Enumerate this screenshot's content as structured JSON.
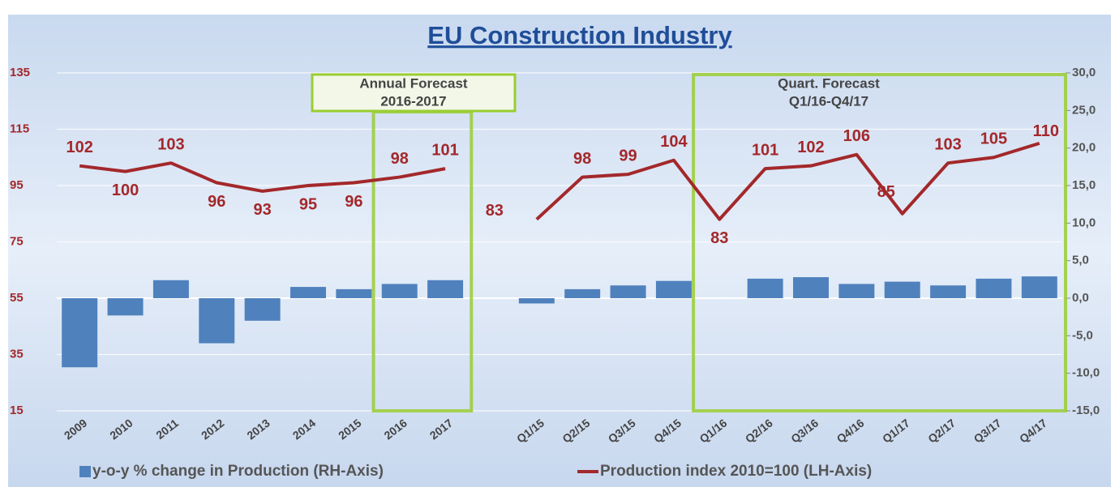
{
  "chart_data": {
    "type": "bar-line",
    "title": "EU Construction Industry",
    "categories": [
      "2009",
      "2010",
      "2011",
      "2012",
      "2013",
      "2014",
      "2015",
      "2016",
      "2017",
      null,
      "Q1/15",
      "Q2/15",
      "Q3/15",
      "Q4/15",
      "Q1/16",
      "Q2/16",
      "Q3/16",
      "Q4/16",
      "Q1/17",
      "Q2/17",
      "Q3/17",
      "Q4/17"
    ],
    "series": [
      {
        "name": "y-o-y % change in Production (RH-Axis)",
        "type": "bar",
        "axis": "y2",
        "color": "#4f81bd",
        "values": [
          -9.2,
          -2.3,
          2.4,
          -6.0,
          -3.0,
          1.5,
          1.2,
          1.9,
          2.4,
          null,
          -0.7,
          1.2,
          1.7,
          2.3,
          null,
          2.6,
          2.8,
          1.9,
          2.2,
          1.7,
          2.6,
          2.9
        ]
      },
      {
        "name": "Production index 2010=100 (LH-Axis)",
        "type": "line",
        "axis": "y",
        "color": "#a3282b",
        "values": [
          102,
          100,
          103,
          96,
          93,
          95,
          96,
          98,
          101,
          null,
          83,
          98,
          99,
          104,
          83,
          101,
          102,
          106,
          85,
          103,
          105,
          110
        ]
      }
    ],
    "ylim": [
      15,
      135
    ],
    "yticks": [
      15,
      35,
      55,
      75,
      95,
      115,
      135
    ],
    "y2lim": [
      -15,
      30
    ],
    "y2ticks": [
      {
        "value": -15,
        "label": "-15,0"
      },
      {
        "value": -10,
        "label": "-10,0"
      },
      {
        "value": -5,
        "label": "-5,0"
      },
      {
        "value": 0,
        "label": "0,0"
      },
      {
        "value": 5,
        "label": "5,0"
      },
      {
        "value": 10,
        "label": "10,0"
      },
      {
        "value": 15,
        "label": "15,0"
      },
      {
        "value": 20,
        "label": "20,0"
      },
      {
        "value": 25,
        "label": "25,0"
      },
      {
        "value": 30,
        "label": "30,0"
      }
    ],
    "annotations": [
      {
        "lines": [
          "Annual Forecast",
          "2016-2017"
        ]
      },
      {
        "lines": [
          "Quart. Forecast",
          "Q1/16-Q4/17"
        ]
      }
    ],
    "grid": true,
    "legend": "bottom"
  }
}
